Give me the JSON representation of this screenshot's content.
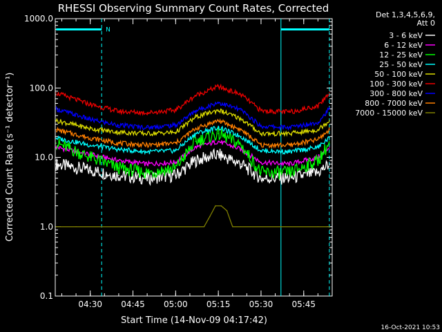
{
  "chart_data": {
    "type": "line",
    "title": "RHESSI Observing Summary Count Rates, Corrected",
    "xlabel": "Start Time (14-Nov-09 04:17:42)",
    "ylabel": "Corrected Count Rate (s⁻¹ detector⁻¹)",
    "yscale": "log",
    "ylim": [
      0.1,
      1000.0
    ],
    "xlim": [
      "04:17:42",
      "05:55:00"
    ],
    "x_ticks": [
      "04:30",
      "04:45",
      "05:00",
      "05:15",
      "05:30",
      "05:45"
    ],
    "y_ticks": [
      "0.1",
      "1.0",
      "10.0",
      "100.0",
      "1000.0"
    ],
    "legend_header": [
      "Det 1,3,4,5,6,9,",
      "Att 0"
    ],
    "legend_position": "right",
    "series": [
      {
        "name": "3 - 6 keV",
        "color": "#ffffff",
        "x": [
          "04:18",
          "04:30",
          "04:40",
          "04:50",
          "05:00",
          "05:07",
          "05:15",
          "05:23",
          "05:30",
          "05:40",
          "05:50",
          "05:54"
        ],
        "values": [
          8,
          6.5,
          5.5,
          5,
          5.5,
          9,
          11,
          8,
          5,
          5,
          6,
          8
        ]
      },
      {
        "name": "6 - 12 keV",
        "color": "#ff00ff",
        "x": [
          "04:18",
          "04:30",
          "04:40",
          "04:50",
          "05:00",
          "05:07",
          "05:15",
          "05:23",
          "05:30",
          "05:40",
          "05:50",
          "05:54"
        ],
        "values": [
          14,
          11,
          9,
          8,
          8.5,
          14,
          17,
          13,
          8.5,
          8,
          10,
          14
        ]
      },
      {
        "name": "12 - 25 keV",
        "color": "#00ff00",
        "x": [
          "04:18",
          "04:30",
          "04:40",
          "04:50",
          "05:00",
          "05:07",
          "05:15",
          "05:23",
          "05:30",
          "05:40",
          "05:50",
          "05:54"
        ],
        "values": [
          16,
          10,
          7,
          6,
          7,
          17,
          22,
          15,
          6,
          6,
          9,
          16
        ]
      },
      {
        "name": "25 - 50 keV",
        "color": "#00ffff",
        "x": [
          "04:18",
          "04:30",
          "04:40",
          "04:50",
          "05:00",
          "05:07",
          "05:15",
          "05:23",
          "05:30",
          "05:40",
          "05:50",
          "05:54"
        ],
        "values": [
          19,
          15,
          13,
          12,
          12.5,
          22,
          27,
          20,
          12.5,
          12,
          14,
          19
        ]
      },
      {
        "name": "50 - 100 keV",
        "color": "#dddd00",
        "x": [
          "04:18",
          "04:30",
          "04:40",
          "04:50",
          "05:00",
          "05:07",
          "05:15",
          "05:23",
          "05:30",
          "05:40",
          "05:50",
          "05:54"
        ],
        "values": [
          34,
          26,
          23,
          22,
          23,
          38,
          48,
          36,
          22,
          22,
          25,
          34
        ]
      },
      {
        "name": "100 - 300 keV",
        "color": "#ee0000",
        "x": [
          "04:18",
          "04:30",
          "04:40",
          "04:50",
          "05:00",
          "05:07",
          "05:15",
          "05:23",
          "05:30",
          "05:40",
          "05:50",
          "05:54"
        ],
        "values": [
          85,
          58,
          46,
          44,
          48,
          78,
          105,
          80,
          47,
          45,
          55,
          85
        ]
      },
      {
        "name": "300 - 800 keV",
        "color": "#0000ff",
        "x": [
          "04:18",
          "04:30",
          "04:40",
          "04:50",
          "05:00",
          "05:07",
          "05:15",
          "05:23",
          "05:30",
          "05:40",
          "05:50",
          "05:54"
        ],
        "values": [
          50,
          35,
          29,
          27,
          29,
          47,
          62,
          48,
          28,
          27,
          32,
          50
        ]
      },
      {
        "name": "800 - 7000 keV",
        "color": "#ff7f00",
        "x": [
          "04:18",
          "04:30",
          "04:40",
          "04:50",
          "05:00",
          "05:07",
          "05:15",
          "05:23",
          "05:30",
          "05:40",
          "05:50",
          "05:54"
        ],
        "values": [
          25,
          19,
          16,
          15,
          16,
          26,
          34,
          25,
          15,
          15,
          18,
          25
        ]
      },
      {
        "name": "7000 - 15000 keV",
        "color": "#808000",
        "x": [
          "04:18",
          "04:25",
          "05:10",
          "05:12",
          "05:14",
          "05:16",
          "05:18",
          "05:20",
          "05:50",
          "05:54"
        ],
        "values": [
          1.0,
          1.0,
          1.0,
          1.4,
          2.0,
          2.0,
          1.7,
          1.0,
          1.0,
          1.0
        ]
      }
    ],
    "annotations": [
      {
        "type": "hline",
        "color": "#00ffff",
        "x_start": "04:18",
        "x_end": "04:34",
        "y": 700,
        "label": "N"
      },
      {
        "type": "hline",
        "color": "#00ffff",
        "x_start": "05:37",
        "x_end": "05:54",
        "y": 700,
        "label": ""
      },
      {
        "type": "vline",
        "color": "#00ffff",
        "x": "04:34",
        "style": "dashed"
      },
      {
        "type": "vline",
        "color": "#00ffff",
        "x": "05:37",
        "style": "solid"
      },
      {
        "type": "vline",
        "color": "#00ffff",
        "x": "05:54",
        "style": "dashed"
      }
    ]
  },
  "footer": {
    "timestamp": "16-Oct-2021 10:53"
  }
}
